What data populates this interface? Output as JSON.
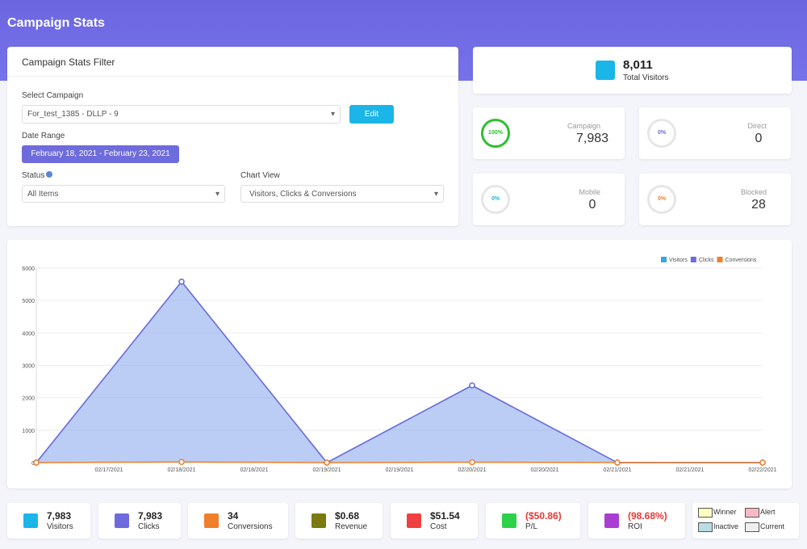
{
  "header": {
    "title": "Campaign Stats"
  },
  "filter": {
    "title": "Campaign Stats Filter",
    "campaign_label": "Select Campaign",
    "campaign": "For_test_1385  -  DLLP  -  9",
    "edit": "Edit",
    "date_label": "Date Range",
    "date_range": "February 18, 2021 - February 23, 2021",
    "status_label": "Status",
    "status": "All Items",
    "view_label": "Chart View",
    "view": "Visitors, Clicks & Conversions"
  },
  "total": {
    "value": "8,011",
    "label": "Total Visitors"
  },
  "gauges": [
    {
      "percent": "100%",
      "label": "Campaign",
      "value": "7,983",
      "color": "#2ec02e"
    },
    {
      "percent": "0%",
      "label": "Direct",
      "value": "0",
      "color": "#6e6bdc"
    },
    {
      "percent": "0%",
      "label": "Mobile",
      "value": "0",
      "color": "#1bb5e8"
    },
    {
      "percent": "0%",
      "label": "Blocked",
      "value": "28",
      "color": "#f07f2c"
    }
  ],
  "chart_data": {
    "type": "area",
    "categories": [
      null,
      "02/18/2021",
      "02/19/2021",
      "02/20/2021",
      "02/21/2021",
      "02/22/2021"
    ],
    "midpoint_labels": [
      "02/17/2021",
      "02/18/2021",
      "02/19/2021",
      "02/20/2021",
      "02/21/2021"
    ],
    "series": [
      {
        "name": "Visitors",
        "color": "#35a8e0",
        "values": [
          0,
          5580,
          0,
          2380,
          0,
          0
        ]
      },
      {
        "name": "Clicks",
        "color": "#6e6bdc",
        "values": [
          0,
          5580,
          0,
          2380,
          0,
          0
        ]
      },
      {
        "name": "Conversions",
        "color": "#f07f2c",
        "values": [
          0,
          20,
          0,
          12,
          2,
          0
        ]
      }
    ],
    "ylim": [
      0,
      6000
    ],
    "yticks": [
      0,
      1000,
      2000,
      3000,
      4000,
      5000,
      6000
    ],
    "grid": true,
    "legend": "top-right"
  },
  "stats": [
    {
      "value": "7,983",
      "label": "Visitors",
      "icon": "#1bb5e8",
      "color": "#222"
    },
    {
      "value": "7,983",
      "label": "Clicks",
      "icon": "#6e6bdc",
      "color": "#222"
    },
    {
      "value": "34",
      "label": "Conversions",
      "icon": "#f07f2c",
      "color": "#222"
    },
    {
      "value": "$0.68",
      "label": "Revenue",
      "icon": "#7a7a10",
      "color": "#222"
    },
    {
      "value": "$51.54",
      "label": "Cost",
      "icon": "#f04040",
      "color": "#222"
    },
    {
      "value": "($50.86)",
      "label": "P/L",
      "icon": "#2ed24a",
      "color": "#e53935"
    },
    {
      "value": "(98.68%)",
      "label": "ROI",
      "icon": "#a93fd0",
      "color": "#e53935"
    }
  ],
  "legend_boxes": [
    {
      "name": "Winner",
      "color": "#ffffc0"
    },
    {
      "name": "Alert",
      "color": "#f9b9c4"
    },
    {
      "name": "Inactive",
      "color": "#b9dde4"
    },
    {
      "name": "Current",
      "color": "#f0f0f0"
    }
  ]
}
